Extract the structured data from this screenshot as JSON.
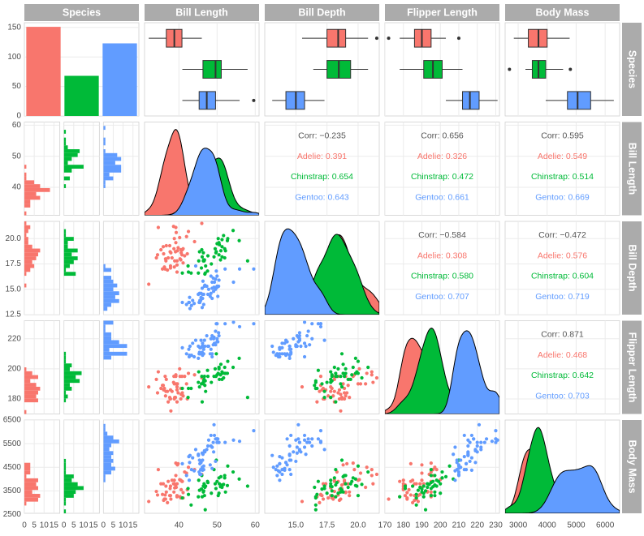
{
  "chart_data": {
    "type": "pairs",
    "species_title": "Species",
    "species": [
      {
        "name": "Adelie",
        "color": "#F8766D",
        "count": 151
      },
      {
        "name": "Chinstrap",
        "color": "#00BA38",
        "count": 68
      },
      {
        "name": "Gentoo",
        "color": "#619CFF",
        "count": 123
      }
    ],
    "count_ylim": [
      0,
      158
    ],
    "count_yticks": [
      0,
      50,
      100,
      150
    ],
    "hist_xlim": [
      0,
      18
    ],
    "hist_xticks": [
      0,
      5,
      10,
      15
    ],
    "variables": [
      {
        "name": "Bill Length",
        "lim": [
          31,
          61
        ],
        "xticks": [
          40,
          50,
          60
        ],
        "yticks": [
          40,
          50,
          60
        ]
      },
      {
        "name": "Bill Depth",
        "lim": [
          12.5,
          21.7
        ],
        "xticks": [
          {
            "value": 15,
            "label": "15.0"
          },
          17.5,
          {
            "value": 20,
            "label": "20.0"
          }
        ],
        "yticks": [
          12.5,
          {
            "value": 15,
            "label": "15.0"
          },
          17.5,
          {
            "value": 20,
            "label": "20.0"
          }
        ]
      },
      {
        "name": "Flipper Length",
        "lim": [
          170,
          232
        ],
        "xticks": [
          170,
          180,
          190,
          200,
          210,
          220,
          230
        ],
        "yticks": [
          180,
          200,
          220
        ]
      },
      {
        "name": "Body Mass",
        "lim": [
          2550,
          6500
        ],
        "xticks": [
          3000,
          4000,
          5000,
          6000
        ],
        "yticks": [
          2500,
          3500,
          4500,
          5500,
          6500
        ]
      }
    ],
    "boxes": [
      [
        {
          "stats": [
            32.1,
            36.7,
            38.8,
            40.8,
            46.0
          ],
          "outliers": []
        },
        {
          "stats": [
            40.9,
            46.3,
            49.6,
            51.1,
            58.0
          ],
          "outliers": []
        },
        {
          "stats": [
            40.9,
            45.3,
            47.3,
            49.6,
            55.9
          ],
          "outliers": [
            59.6
          ]
        }
      ],
      [
        {
          "stats": [
            15.5,
            17.5,
            18.4,
            19.0,
            20.8
          ],
          "outliers": [
            21.5
          ]
        },
        {
          "stats": [
            16.4,
            17.5,
            18.45,
            19.4,
            20.8
          ],
          "outliers": []
        },
        {
          "stats": [
            13.1,
            14.2,
            15.0,
            15.7,
            17.3
          ],
          "outliers": []
        }
      ],
      [
        {
          "stats": [
            178,
            186,
            190,
            195,
            203
          ],
          "outliers": [
            172,
            210
          ]
        },
        {
          "stats": [
            178,
            191,
            196,
            201,
            212
          ],
          "outliers": []
        },
        {
          "stats": [
            203,
            212,
            216,
            221,
            231
          ],
          "outliers": []
        }
      ],
      [
        {
          "stats": [
            2850,
            3350,
            3700,
            4000,
            4775
          ],
          "outliers": []
        },
        {
          "stats": [
            3250,
            3487,
            3700,
            3950,
            4550
          ],
          "outliers": [
            2700,
            4800
          ]
        },
        {
          "stats": [
            3950,
            4700,
            5050,
            5500,
            6300
          ],
          "outliers": []
        }
      ]
    ],
    "corr": [
      {
        "row": 1,
        "col": 2,
        "overall": "Corr: −0.235",
        "groups": [
          "Adelie: 0.391",
          "Chinstrap: 0.654",
          "Gentoo: 0.643"
        ]
      },
      {
        "row": 1,
        "col": 3,
        "overall": "Corr: 0.656",
        "groups": [
          "Adelie: 0.326",
          "Chinstrap: 0.472",
          "Gentoo: 0.661"
        ]
      },
      {
        "row": 1,
        "col": 4,
        "overall": "Corr: 0.595",
        "groups": [
          "Adelie: 0.549",
          "Chinstrap: 0.514",
          "Gentoo: 0.669"
        ]
      },
      {
        "row": 2,
        "col": 3,
        "overall": "Corr: −0.584",
        "groups": [
          "Adelie: 0.308",
          "Chinstrap: 0.580",
          "Gentoo: 0.707"
        ]
      },
      {
        "row": 2,
        "col": 4,
        "overall": "Corr: −0.472",
        "groups": [
          "Adelie: 0.576",
          "Chinstrap: 0.604",
          "Gentoo: 0.719"
        ]
      },
      {
        "row": 3,
        "col": 4,
        "overall": "Corr: 0.871",
        "groups": [
          "Adelie: 0.468",
          "Chinstrap: 0.642",
          "Gentoo: 0.703"
        ]
      }
    ],
    "points": [
      [
        [
          39.1,
          18.7,
          181,
          3750
        ],
        [
          39.5,
          17.4,
          186,
          3800
        ],
        [
          40.3,
          18,
          195,
          3250
        ],
        [
          36.7,
          19.3,
          193,
          3450
        ],
        [
          39.3,
          20.6,
          190,
          3650
        ],
        [
          38.9,
          17.8,
          181,
          3625
        ],
        [
          39.2,
          19.6,
          195,
          4675
        ],
        [
          34.1,
          18.1,
          193,
          3475
        ],
        [
          42,
          20.2,
          190,
          4250
        ],
        [
          37.8,
          17.1,
          186,
          3300
        ],
        [
          37.8,
          17.3,
          180,
          3700
        ],
        [
          41.1,
          17.6,
          182,
          3200
        ],
        [
          38.6,
          21.2,
          191,
          3800
        ],
        [
          34.6,
          21.1,
          198,
          4400
        ],
        [
          36.6,
          17.8,
          185,
          3700
        ],
        [
          38.7,
          19,
          195,
          3450
        ],
        [
          42.5,
          20.7,
          197,
          4500
        ],
        [
          34.4,
          18.4,
          184,
          3325
        ],
        [
          46,
          21.5,
          194,
          4200
        ],
        [
          37.7,
          18.7,
          180,
          3600
        ],
        [
          35.9,
          19.2,
          189,
          3800
        ],
        [
          38.2,
          18.1,
          185,
          3950
        ],
        [
          38.8,
          17.2,
          180,
          3800
        ],
        [
          35.3,
          18.9,
          187,
          3800
        ],
        [
          40.6,
          18.6,
          183,
          3550
        ],
        [
          40.5,
          17.9,
          187,
          3200
        ],
        [
          37.9,
          18.6,
          172,
          3150
        ],
        [
          40.5,
          18.9,
          180,
          3950
        ],
        [
          39.5,
          16.7,
          178,
          3250
        ],
        [
          37.2,
          18.1,
          178,
          3900
        ],
        [
          39.5,
          17.8,
          188,
          3300
        ],
        [
          40.9,
          18.9,
          184,
          3900
        ],
        [
          36.4,
          17,
          195,
          3325
        ],
        [
          39.2,
          21.1,
          196,
          4150
        ],
        [
          38.8,
          20,
          190,
          3950
        ],
        [
          42.2,
          18.5,
          180,
          3550
        ],
        [
          37.6,
          19.3,
          181,
          3300
        ],
        [
          39.8,
          19.1,
          184,
          4650
        ],
        [
          36.5,
          18,
          182,
          3150
        ],
        [
          40.8,
          18.4,
          195,
          3900
        ],
        [
          36,
          18.5,
          186,
          3100
        ],
        [
          44.1,
          19.7,
          196,
          4400
        ],
        [
          37,
          16.9,
          185,
          3000
        ],
        [
          39.6,
          18.8,
          190,
          4600
        ],
        [
          41.1,
          19,
          182,
          3425
        ],
        [
          36.2,
          17.2,
          187,
          3150
        ],
        [
          32.1,
          15.5,
          188,
          3050
        ],
        [
          41.5,
          18.3,
          195,
          4300
        ],
        [
          35.7,
          17,
          189,
          3350
        ],
        [
          40.2,
          20.1,
          200,
          3975
        ]
      ],
      [
        [
          46.5,
          17.9,
          192,
          3500
        ],
        [
          50,
          19.5,
          196,
          3900
        ],
        [
          51.3,
          19.2,
          193,
          3650
        ],
        [
          45.4,
          18.7,
          188,
          3525
        ],
        [
          52.7,
          19.8,
          197,
          3725
        ],
        [
          45.2,
          17.8,
          198,
          3950
        ],
        [
          46.1,
          18.2,
          178,
          3250
        ],
        [
          51.3,
          18.2,
          197,
          3750
        ],
        [
          46,
          18.9,
          195,
          4150
        ],
        [
          51.3,
          19.9,
          198,
          3700
        ],
        [
          46.6,
          17.8,
          193,
          3800
        ],
        [
          51.7,
          20.3,
          194,
          3775
        ],
        [
          47,
          17.3,
          185,
          3700
        ],
        [
          52,
          18.1,
          201,
          4050
        ],
        [
          45.9,
          17.1,
          190,
          3575
        ],
        [
          50.5,
          19.6,
          201,
          4050
        ],
        [
          50.3,
          20,
          197,
          3300
        ],
        [
          58,
          17.8,
          181,
          3700
        ],
        [
          46.4,
          18.6,
          190,
          3450
        ],
        [
          49.2,
          18.2,
          195,
          4400
        ],
        [
          42.4,
          17.3,
          181,
          3600
        ],
        [
          48.5,
          17.5,
          191,
          3400
        ],
        [
          43.2,
          16.6,
          187,
          2900
        ],
        [
          50.6,
          19.4,
          193,
          3800
        ],
        [
          46.7,
          17.9,
          195,
          3300
        ],
        [
          52,
          19,
          197,
          4150
        ],
        [
          50.5,
          18.4,
          200,
          3400
        ],
        [
          49.5,
          19,
          200,
          3800
        ],
        [
          46.4,
          17.8,
          191,
          3700
        ],
        [
          52.8,
          20,
          205,
          4550
        ],
        [
          40.9,
          16.6,
          187,
          3200
        ],
        [
          54.2,
          20.8,
          201,
          4300
        ],
        [
          42.5,
          16.7,
          187,
          3350
        ],
        [
          51,
          18.8,
          203,
          4100
        ],
        [
          49.7,
          18.6,
          195,
          3600
        ],
        [
          47.5,
          16.8,
          199,
          3900
        ],
        [
          47.6,
          18.3,
          195,
          3850
        ],
        [
          52.2,
          18.8,
          197,
          3450
        ],
        [
          45.1,
          16.6,
          191,
          3250
        ],
        [
          46.8,
          16.5,
          189,
          3650
        ],
        [
          55.8,
          19.8,
          207,
          4000
        ],
        [
          50.9,
          17.9,
          196,
          3675
        ],
        [
          49.8,
          18.7,
          210,
          4800
        ],
        [
          46.9,
          16.6,
          192,
          2700
        ]
      ],
      [
        [
          46.1,
          13.2,
          211,
          4500
        ],
        [
          50,
          16.3,
          230,
          5700
        ],
        [
          48.7,
          14.1,
          210,
          4450
        ],
        [
          50,
          15.2,
          218,
          5700
        ],
        [
          47.6,
          14.5,
          215,
          5400
        ],
        [
          46.5,
          13.5,
          210,
          4550
        ],
        [
          45.4,
          14.6,
          211,
          4800
        ],
        [
          46.7,
          15.3,
          219,
          5200
        ],
        [
          43.3,
          13.4,
          209,
          4400
        ],
        [
          46.8,
          15.4,
          215,
          5150
        ],
        [
          40.9,
          13.7,
          214,
          4650
        ],
        [
          49,
          16.1,
          216,
          5550
        ],
        [
          45.5,
          13.7,
          214,
          4650
        ],
        [
          48.4,
          14.6,
          213,
          5850
        ],
        [
          45.8,
          14.6,
          210,
          4200
        ],
        [
          49.3,
          15.7,
          217,
          5850
        ],
        [
          42,
          13.5,
          210,
          4150
        ],
        [
          49.2,
          15.2,
          221,
          6300
        ],
        [
          46.2,
          14.5,
          209,
          4800
        ],
        [
          48.7,
          15.1,
          222,
          5350
        ],
        [
          50.2,
          14.3,
          218,
          5700
        ],
        [
          45.1,
          14.5,
          215,
          5000
        ],
        [
          46.5,
          14.5,
          213,
          4400
        ],
        [
          46.3,
          15.8,
          215,
          5050
        ],
        [
          42.9,
          13.1,
          215,
          5000
        ],
        [
          46.1,
          15.1,
          215,
          5100
        ],
        [
          47.8,
          15,
          215,
          5650
        ],
        [
          48.2,
          14.3,
          210,
          4600
        ],
        [
          50,
          15.3,
          220,
          5550
        ],
        [
          47.3,
          15.3,
          222,
          5250
        ],
        [
          42.8,
          14.2,
          209,
          4700
        ],
        [
          45.1,
          14.5,
          207,
          5050
        ],
        [
          59.6,
          17,
          230,
          6050
        ],
        [
          49.1,
          14.8,
          220,
          5150
        ],
        [
          48.4,
          16.3,
          220,
          5400
        ],
        [
          42.6,
          13.7,
          213,
          4950
        ],
        [
          44.4,
          17.3,
          219,
          5250
        ],
        [
          44,
          13.6,
          208,
          4350
        ],
        [
          48.7,
          15.7,
          208,
          5350
        ],
        [
          42.7,
          13.7,
          208,
          3950
        ],
        [
          49.6,
          16,
          225,
          5700
        ],
        [
          45.3,
          13.7,
          210,
          4300
        ],
        [
          49.6,
          15,
          216,
          4750
        ],
        [
          50.5,
          15.9,
          222,
          5550
        ],
        [
          43.6,
          13.9,
          217,
          4900
        ],
        [
          45.5,
          13.9,
          210,
          4200
        ],
        [
          50.4,
          15.3,
          224,
          5550
        ],
        [
          46.2,
          14.1,
          217,
          4375
        ],
        [
          45.7,
          13.9,
          214,
          4400
        ],
        [
          54.3,
          15.7,
          231,
          5650
        ],
        [
          45.8,
          14.2,
          219,
          4700
        ],
        [
          49.8,
          16.8,
          230,
          5700
        ],
        [
          52.1,
          17,
          230,
          5550
        ],
        [
          55.9,
          17,
          228,
          5600
        ]
      ]
    ]
  }
}
